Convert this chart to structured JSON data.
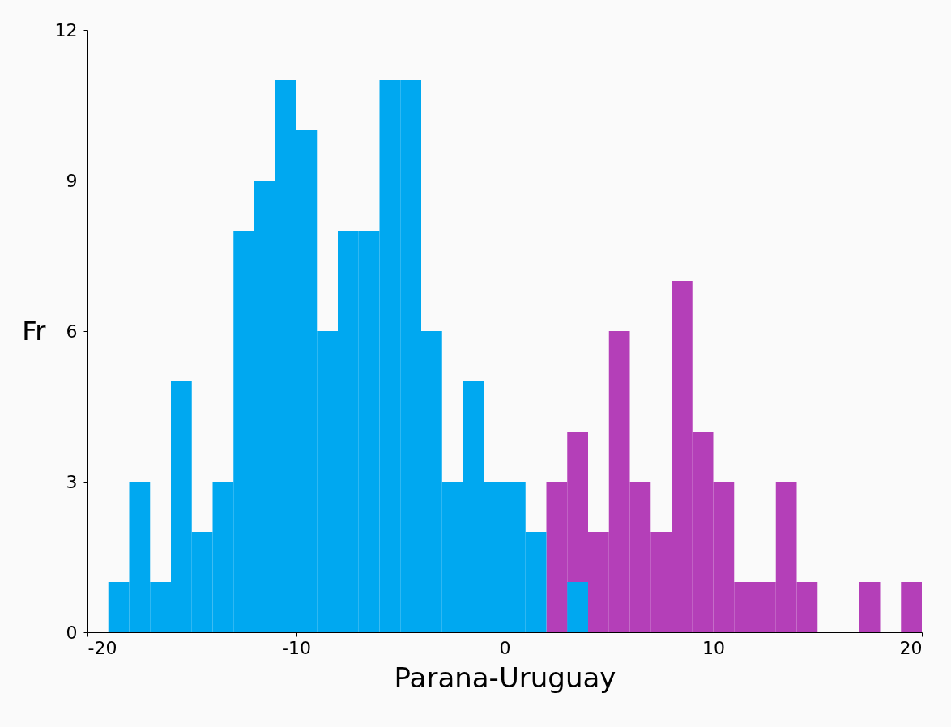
{
  "chart_data": {
    "type": "histogram",
    "xlabel": "Parana-Uruguay",
    "ylabel": "Fr",
    "bins": [
      -19,
      -18,
      -17,
      -16,
      -15,
      -14,
      -13,
      -12,
      -11,
      -10,
      -9,
      -8,
      -7,
      -6,
      -5,
      -4,
      -3,
      -2,
      -1,
      0,
      1,
      2,
      3,
      4,
      5,
      6,
      7,
      8,
      9,
      10,
      11,
      12,
      13,
      14,
      15,
      16,
      17,
      18,
      19,
      20
    ],
    "series": [
      {
        "color": "#b43fb8",
        "values": [
          null,
          null,
          null,
          null,
          null,
          null,
          null,
          null,
          null,
          null,
          null,
          null,
          null,
          null,
          null,
          null,
          null,
          null,
          null,
          null,
          null,
          3,
          4,
          2,
          6,
          3,
          2,
          7,
          4,
          3,
          1,
          1,
          3,
          1,
          0,
          0,
          1,
          0,
          1
        ]
      },
      {
        "color": "#00a8f0",
        "values": [
          1,
          3,
          1,
          5,
          2,
          3,
          8,
          9,
          11,
          10,
          6,
          8,
          8,
          11,
          11,
          6,
          3,
          5,
          3,
          3,
          2,
          null,
          1,
          null,
          null,
          null,
          null,
          null,
          null,
          null,
          null,
          null,
          null,
          null,
          null,
          null,
          null,
          null,
          null
        ]
      }
    ],
    "xlim": [
      -20,
      20
    ],
    "xticks": [
      -20,
      -10,
      0,
      10,
      20
    ],
    "ylim": [
      0,
      12
    ],
    "yticks": [
      0,
      3,
      6,
      9,
      12
    ],
    "grid": false
  }
}
